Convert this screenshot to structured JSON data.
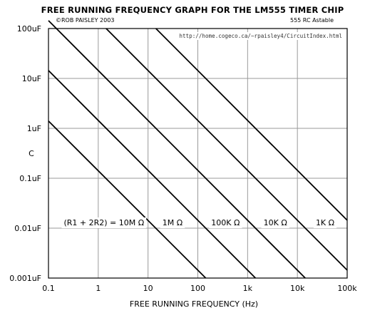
{
  "chart_data": {
    "type": "line",
    "title": "FREE RUNNING FREQUENCY GRAPH FOR THE LM555 TIMER CHIP",
    "subtitle_left": "©ROB PAISLEY 2003",
    "subtitle_right": "555 RC Astable",
    "url": "http://home.cogeco.ca/~rpaisley4/CircuitIndex.html",
    "xlabel": "FREE RUNNING FREQUENCY  (Hz)",
    "ylabel": "C",
    "x_scale": "log",
    "y_scale": "log",
    "xlim": [
      0.1,
      100000
    ],
    "ylim": [
      1e-09,
      0.0001
    ],
    "grid": true,
    "x_ticks": [
      {
        "value": 0.1,
        "label": "0.1"
      },
      {
        "value": 1,
        "label": "1"
      },
      {
        "value": 10,
        "label": "10"
      },
      {
        "value": 100,
        "label": "100"
      },
      {
        "value": 1000,
        "label": "1k"
      },
      {
        "value": 10000,
        "label": "10k"
      },
      {
        "value": 100000,
        "label": "100k"
      }
    ],
    "y_ticks": [
      {
        "value": 0.0001,
        "label": "100uF"
      },
      {
        "value": 1e-05,
        "label": "10uF"
      },
      {
        "value": 1e-06,
        "label": "1uF"
      },
      {
        "value": 1e-07,
        "label": "0.1uF"
      },
      {
        "value": 1e-08,
        "label": "0.01uF"
      },
      {
        "value": 1e-09,
        "label": "0.001uF"
      }
    ],
    "series": [
      {
        "label": "(R1 + 2R2) = 10M Ω",
        "resistance_ohms": 10000000,
        "label_freq": 1.3,
        "points": [
          [
            0.1,
            1.4e-06
          ],
          [
            144,
            1e-09
          ]
        ]
      },
      {
        "label": "1M Ω",
        "resistance_ohms": 1000000,
        "label_freq": 31,
        "points": [
          [
            0.1,
            1.44e-05
          ],
          [
            1440,
            1e-09
          ]
        ]
      },
      {
        "label": "100K Ω",
        "resistance_ohms": 100000,
        "label_freq": 360,
        "points": [
          [
            0.1,
            0.000144
          ],
          [
            14400,
            1e-09
          ]
        ]
      },
      {
        "label": "10K Ω",
        "resistance_ohms": 10000,
        "label_freq": 3600,
        "points": [
          [
            1.44,
            0.0001
          ],
          [
            100000,
            1.44e-09
          ]
        ]
      },
      {
        "label": "1K Ω",
        "resistance_ohms": 1000,
        "label_freq": 36000,
        "points": [
          [
            14.4,
            0.0001
          ],
          [
            100000,
            1.44e-08
          ]
        ]
      }
    ],
    "label_capacitance": 1.3e-08
  }
}
